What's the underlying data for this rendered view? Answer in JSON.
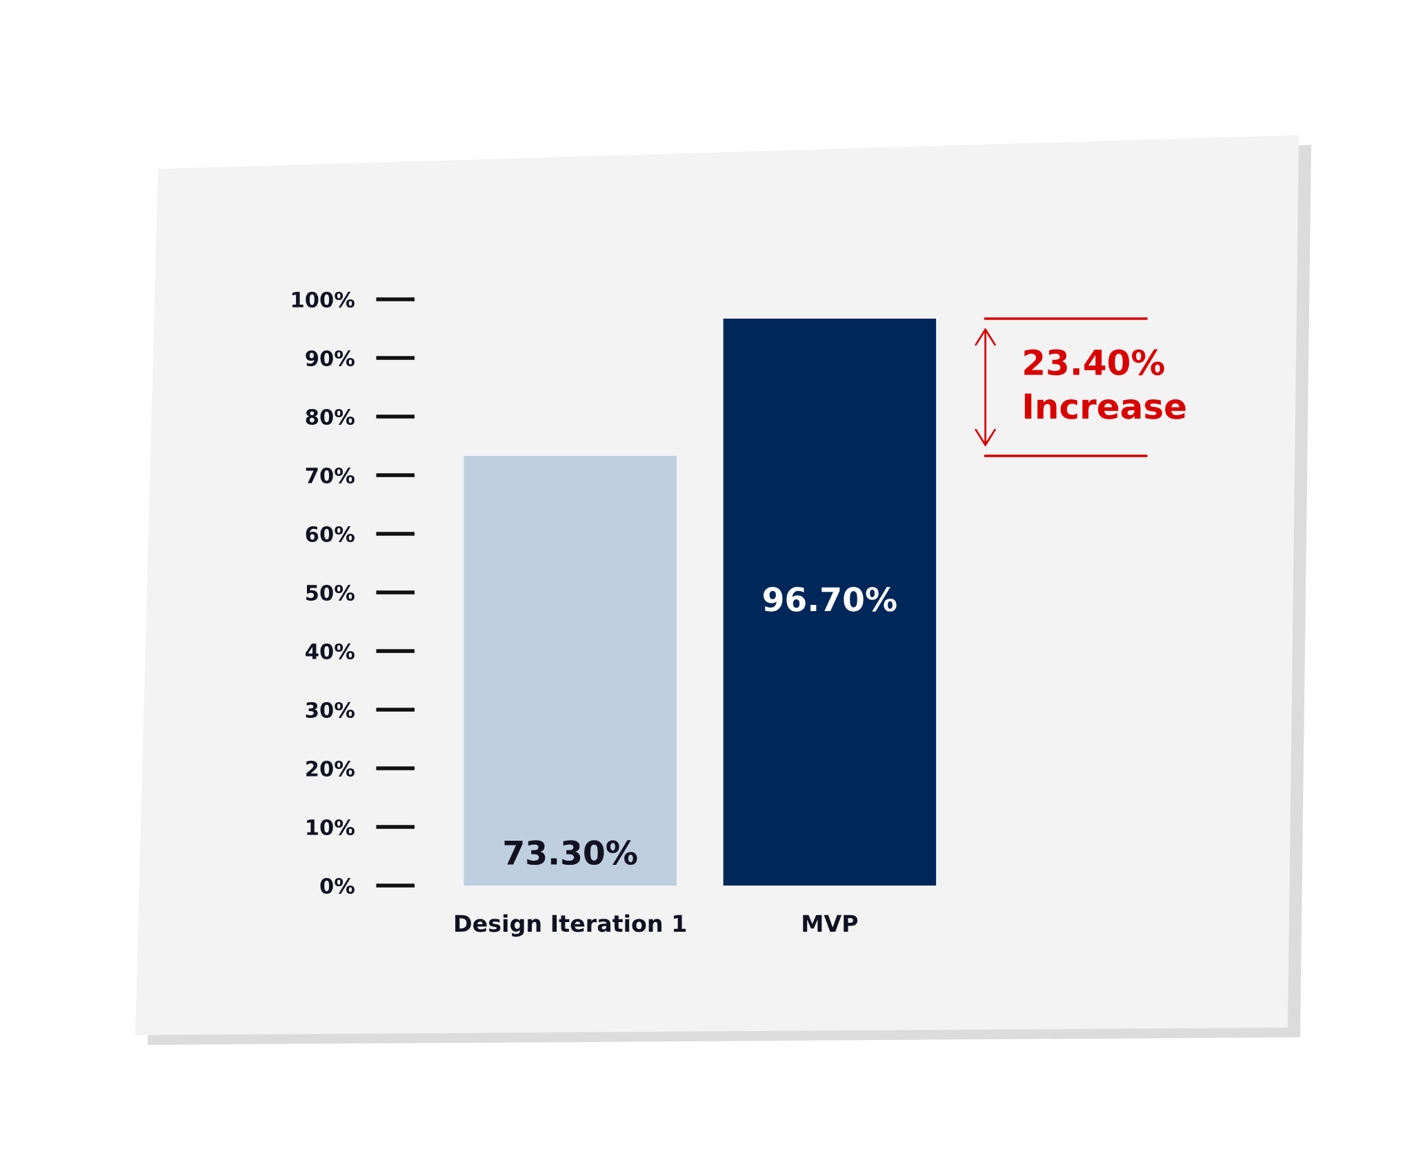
{
  "chart_data": {
    "type": "bar",
    "categories": [
      "Design Iteration 1",
      "MVP"
    ],
    "values": [
      73.3,
      96.7
    ],
    "colors": [
      "#bfcfdf",
      "#00275a"
    ],
    "value_labels": [
      "73.30%",
      "96.70%"
    ],
    "ylim": [
      0,
      100
    ],
    "yticks": [
      {
        "value": 0,
        "label": "0%"
      },
      {
        "value": 10,
        "label": "10%"
      },
      {
        "value": 20,
        "label": "20%"
      },
      {
        "value": 30,
        "label": "30%"
      },
      {
        "value": 40,
        "label": "40%"
      },
      {
        "value": 50,
        "label": "50%"
      },
      {
        "value": 60,
        "label": "60%"
      },
      {
        "value": 70,
        "label": "70%"
      },
      {
        "value": 80,
        "label": "80%"
      },
      {
        "value": 90,
        "label": "90%"
      },
      {
        "value": 100,
        "label": "100%"
      }
    ],
    "annotations": [
      "23.40%\nIncrease"
    ]
  }
}
